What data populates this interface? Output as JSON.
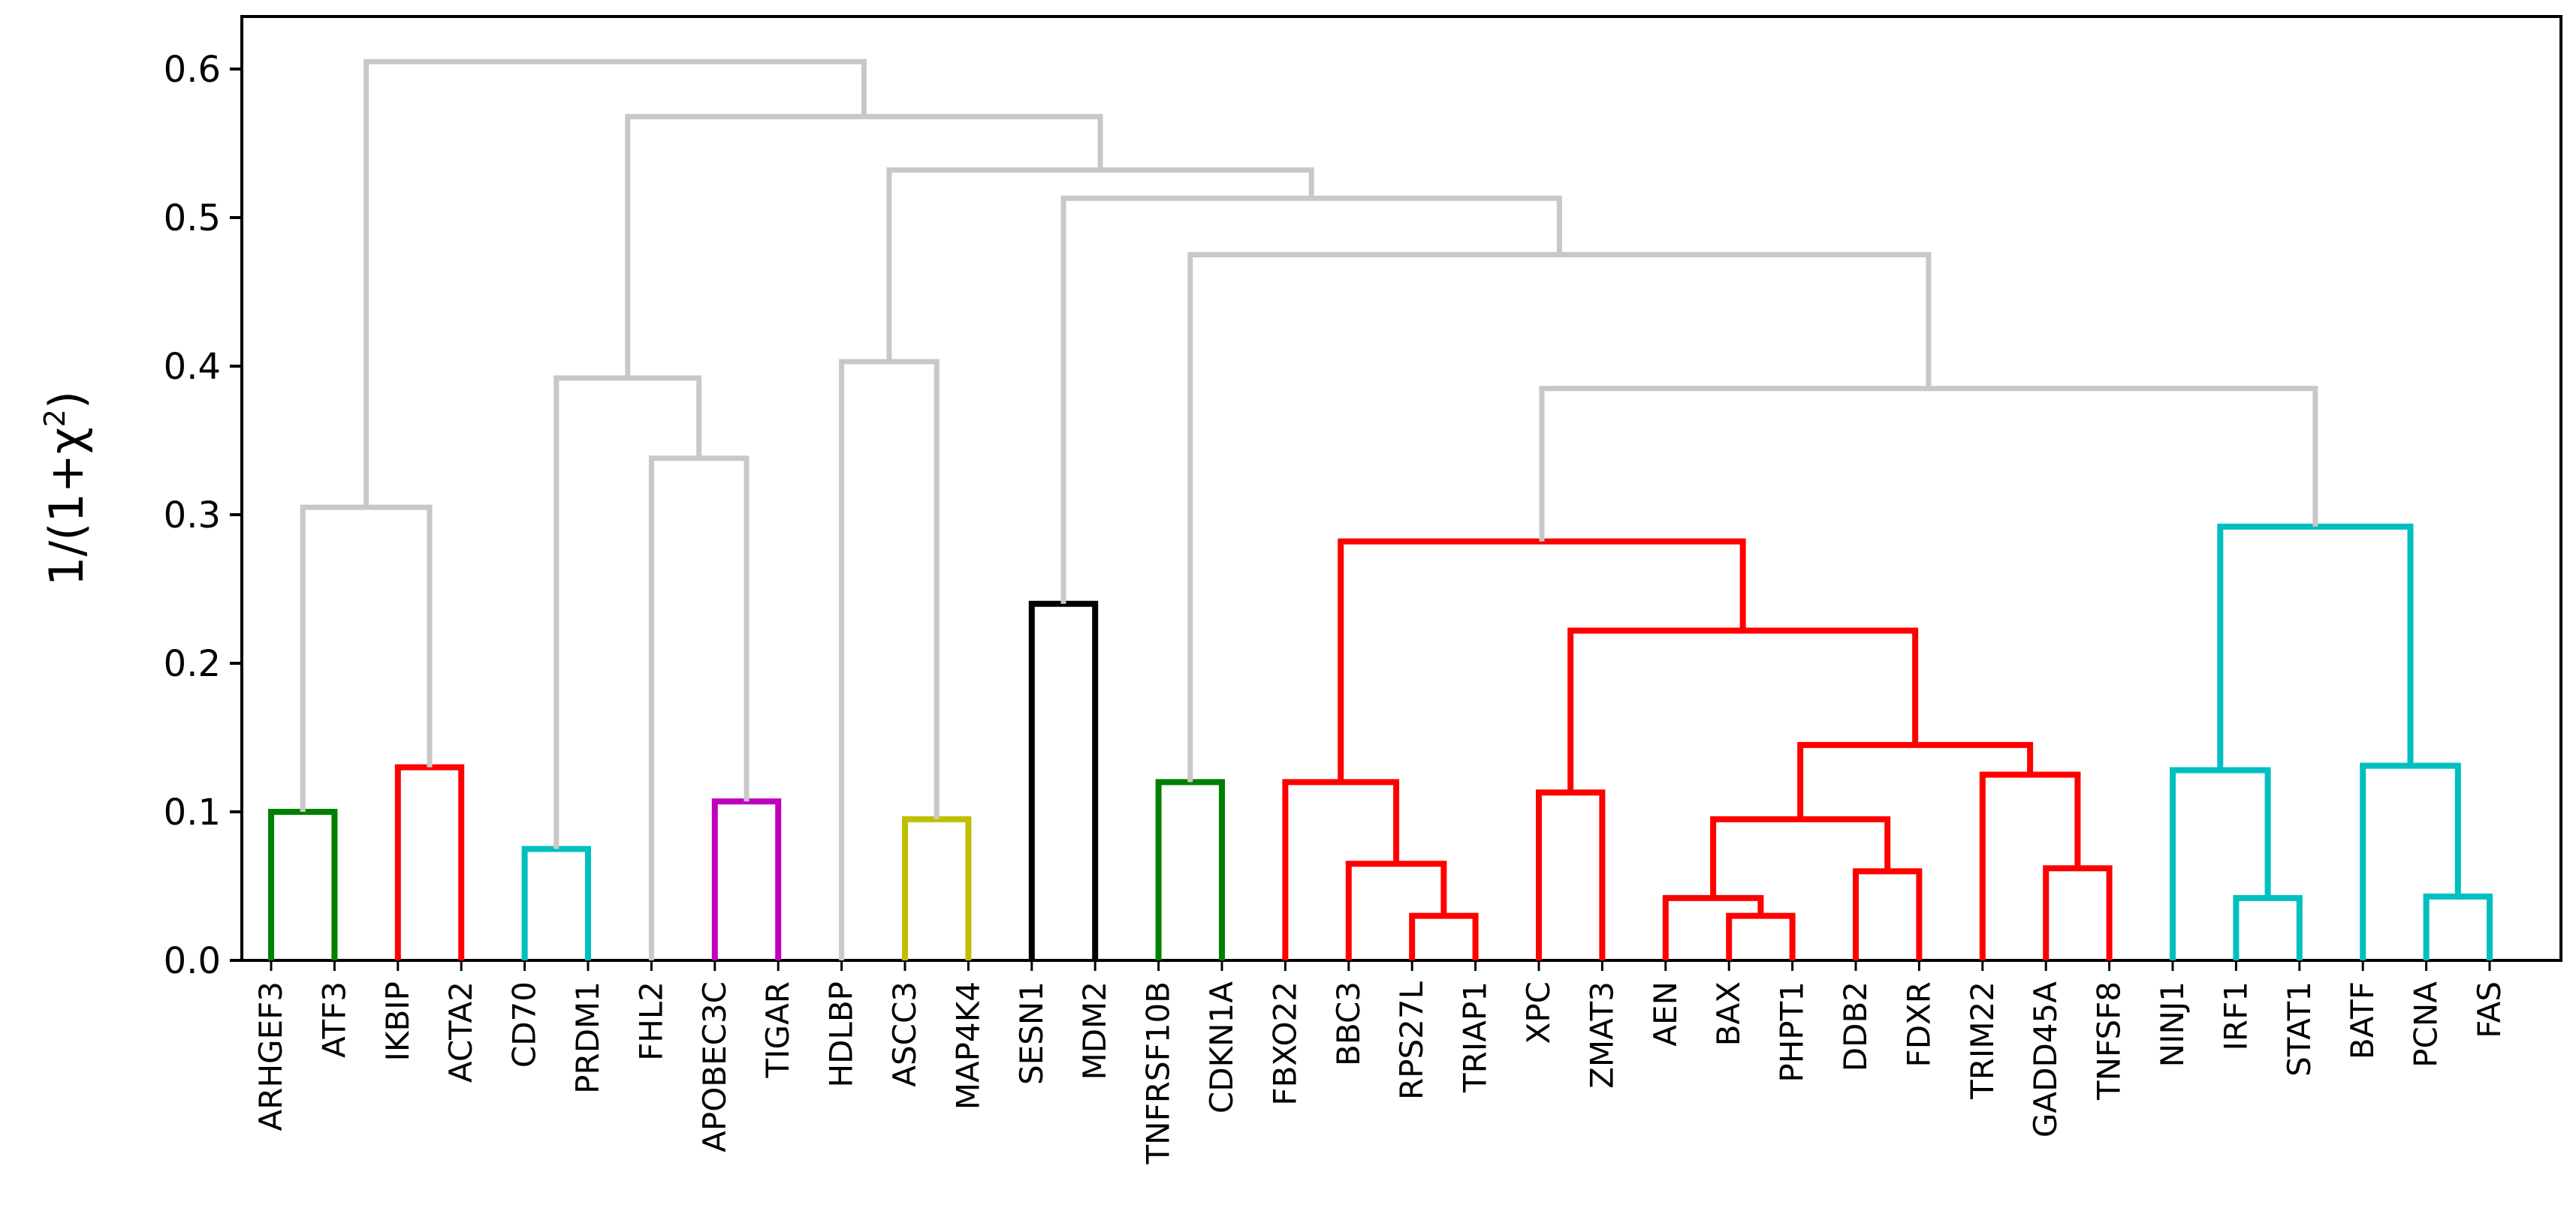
{
  "chart_data": {
    "type": "dendrogram",
    "title": "",
    "xlabel": "",
    "ylabel": "1/(1+χ",
    "ylabel_superscript": "2",
    "ylabel_suffix": ")",
    "ylim": [
      0.0,
      0.64
    ],
    "yticks": [
      0.0,
      0.1,
      0.2,
      0.3,
      0.4,
      0.5,
      0.6
    ],
    "ytick_labels": [
      "0.0",
      "0.1",
      "0.2",
      "0.3",
      "0.4",
      "0.5",
      "0.6"
    ],
    "leaves": [
      "ARHGEF3",
      "ATF3",
      "IKBIP",
      "ACTA2",
      "CD70",
      "PRDM1",
      "FHL2",
      "APOBEC3C",
      "TIGAR",
      "HDLBP",
      "ASCC3",
      "MAP4K4",
      "SESN1",
      "MDM2",
      "TNFRSF10B",
      "CDKN1A",
      "FBXO22",
      "BBC3",
      "RPS27L",
      "TRIAP1",
      "XPC",
      "ZMAT3",
      "AEN",
      "BAX",
      "PHPT1",
      "DDB2",
      "FDXR",
      "TRIM22",
      "GADD45A",
      "TNFSF8",
      "NINJ1",
      "IRF1",
      "STAT1",
      "BATF",
      "PCNA",
      "FAS"
    ],
    "colors": {
      "green": "#008000",
      "red": "#ff0000",
      "cyan": "#00bfbf",
      "magenta": "#bf00bf",
      "olive": "#bfbf00",
      "black": "#000000",
      "gray": "#c8c8c8"
    },
    "merges": [
      {
        "left": "ARHGEF3",
        "right": "ATF3",
        "height": 0.1,
        "color": "green"
      },
      {
        "left": "IKBIP",
        "right": "ACTA2",
        "height": 0.13,
        "color": "red"
      },
      {
        "left": "CD70",
        "right": "PRDM1",
        "height": 0.075,
        "color": "cyan"
      },
      {
        "left": "APOBEC3C",
        "right": "TIGAR",
        "height": 0.107,
        "color": "magenta"
      },
      {
        "left": "ASCC3",
        "right": "MAP4K4",
        "height": 0.095,
        "color": "olive"
      },
      {
        "left": "SESN1",
        "right": "MDM2",
        "height": 0.24,
        "color": "black"
      },
      {
        "left": "TNFRSF10B",
        "right": "CDKN1A",
        "height": 0.12,
        "color": "green"
      },
      {
        "left": "RPS27L",
        "right": "TRIAP1",
        "height": 0.03,
        "color": "red"
      },
      {
        "left": "BBC3",
        "right": "c8",
        "height": 0.065,
        "color": "red"
      },
      {
        "left": "FBXO22",
        "right": "c9",
        "height": 0.12,
        "color": "red"
      },
      {
        "left": "XPC",
        "right": "ZMAT3",
        "height": 0.113,
        "color": "red"
      },
      {
        "left": "BAX",
        "right": "PHPT1",
        "height": 0.03,
        "color": "red"
      },
      {
        "left": "AEN",
        "right": "c12",
        "height": 0.042,
        "color": "red"
      },
      {
        "left": "DDB2",
        "right": "FDXR",
        "height": 0.06,
        "color": "red"
      },
      {
        "left": "c13",
        "right": "c14",
        "height": 0.095,
        "color": "red"
      },
      {
        "left": "GADD45A",
        "right": "TNFSF8",
        "height": 0.062,
        "color": "red"
      },
      {
        "left": "TRIM22",
        "right": "c16",
        "height": 0.125,
        "color": "red"
      },
      {
        "left": "c15",
        "right": "c17",
        "height": 0.145,
        "color": "red"
      },
      {
        "left": "c11",
        "right": "c18",
        "height": 0.222,
        "color": "red"
      },
      {
        "left": "c10",
        "right": "c19",
        "height": 0.282,
        "color": "red"
      },
      {
        "left": "IRF1",
        "right": "STAT1",
        "height": 0.042,
        "color": "cyan"
      },
      {
        "left": "NINJ1",
        "right": "c21",
        "height": 0.128,
        "color": "cyan"
      },
      {
        "left": "PCNA",
        "right": "FAS",
        "height": 0.043,
        "color": "cyan"
      },
      {
        "left": "BATF",
        "right": "c23",
        "height": 0.131,
        "color": "cyan"
      },
      {
        "left": "c22",
        "right": "c24",
        "height": 0.292,
        "color": "cyan"
      },
      {
        "left": "c20",
        "right": "c25",
        "height": 0.385,
        "color": "gray"
      },
      {
        "left": "c7",
        "right": "c26",
        "height": 0.475,
        "color": "gray"
      },
      {
        "left": "c6",
        "right": "c27",
        "height": 0.513,
        "color": "gray"
      },
      {
        "left": "HDLBP",
        "right": "c5",
        "height": 0.403,
        "color": "gray"
      },
      {
        "left": "c29",
        "right": "c28",
        "height": 0.532,
        "color": "gray"
      },
      {
        "left": "FHL2",
        "right": "c4",
        "height": 0.338,
        "color": "gray"
      },
      {
        "left": "c3",
        "right": "c31",
        "height": 0.392,
        "color": "gray"
      },
      {
        "left": "c32",
        "right": "c30",
        "height": 0.568,
        "color": "gray"
      },
      {
        "left": "c1",
        "right": "c2",
        "height": 0.305,
        "color": "gray"
      },
      {
        "left": "c34",
        "right": "c33",
        "height": 0.605,
        "color": "gray"
      }
    ]
  }
}
